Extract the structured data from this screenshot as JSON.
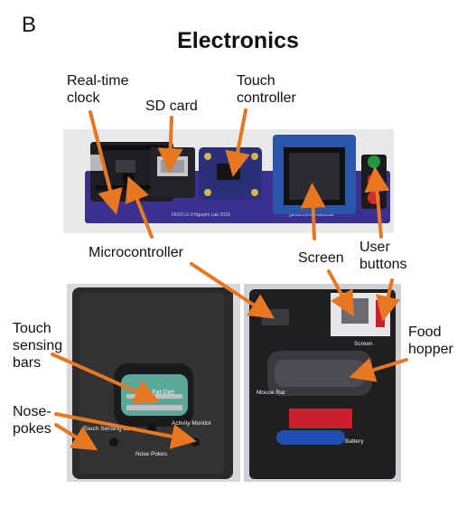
{
  "figure": {
    "panel_letter": "B",
    "title": "Electronics"
  },
  "labels": {
    "real_time_clock": "Real-time\nclock",
    "sd_card": "SD card",
    "touch_controller": "Touch\ncontroller",
    "microcontroller": "Microcontroller",
    "screen": "Screen",
    "user_buttons": "User\nbuttons",
    "touch_sensing_bars": "Touch\nsensing\nbars",
    "food_hopper": "Food\nhopper",
    "nose_pokes": "Nose-\npokes"
  },
  "photo_text": {
    "high_fat_diet": "High Fat Diet",
    "touch_sensing_bars": "Touch Sensing Bars",
    "activity_monitor": "Activity Monitor",
    "nose_pokes": "Nose Pokes",
    "mouse_rat": "Mouse Rat",
    "screen": "Screen",
    "battery": "Battery"
  },
  "colors": {
    "arrow": "#e87722",
    "pcb": "#3b2f8f",
    "device_body": "#2a2a2c",
    "button_green": "#1f9a3a",
    "button_red": "#d42a2a",
    "battery_blue": "#1f4fb0",
    "board_red": "#c8202f"
  }
}
